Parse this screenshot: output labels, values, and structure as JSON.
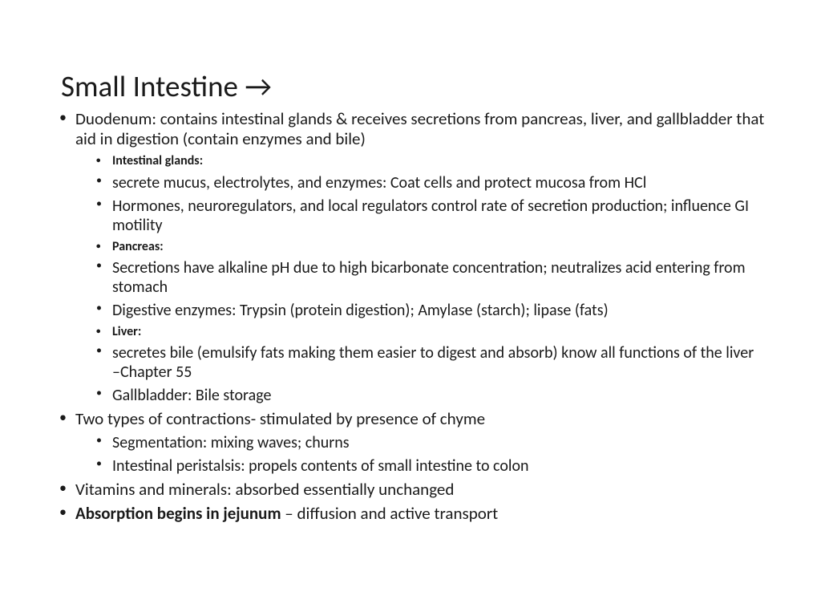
{
  "title": "Small Intestine →",
  "bullets": {
    "duodenum": "Duodenum: contains intestinal glands & receives secretions from pancreas, liver, and gallbladder that aid in digestion (contain enzymes and bile)",
    "intestinal_glands_label": "Intestinal glands",
    "intestinal_glands_colon": ":",
    "secrete_mucus": "secrete mucus, electrolytes, and enzymes: Coat cells and protect mucosa from HCl",
    "hormones": "Hormones, neuroregulators, and local regulators control rate of secretion production; influence GI motility",
    "pancreas_label": "Pancreas:",
    "secretions_alkaline": "Secretions have alkaline pH due to high bicarbonate concentration; neutralizes acid entering from stomach",
    "digestive_enzymes": "Digestive enzymes: Trypsin (protein digestion); Amylase (starch); lipase (fats)",
    "liver_label": "Liver:",
    "secretes_bile": "secretes bile (emulsify fats making them easier to digest and absorb) know all functions of the liver –Chapter 55",
    "gallbladder": "Gallbladder: Bile storage",
    "contractions": "Two types of contractions- stimulated by presence of chyme",
    "segmentation": "Segmentation: mixing waves; churns",
    "peristalsis": "Intestinal peristalsis: propels contents of small intestine to colon",
    "vitamins": "Vitamins and minerals: absorbed essentially unchanged",
    "absorption_bold": "Absorption begins in jejunum ",
    "absorption_rest": "– diffusion and active transport"
  }
}
